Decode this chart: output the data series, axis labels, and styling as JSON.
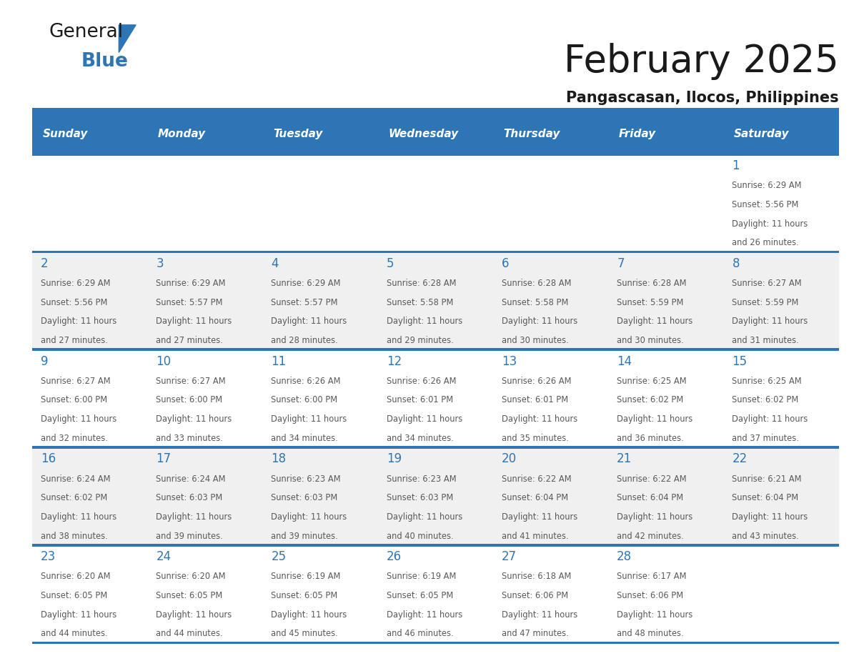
{
  "title": "February 2025",
  "subtitle": "Pangascasan, Ilocos, Philippines",
  "header_bg_color": "#2E75B6",
  "header_text_color": "#FFFFFF",
  "cell_bg_white": "#FFFFFF",
  "cell_bg_gray": "#F2F2F2",
  "border_color": "#2E75B6",
  "day_number_color": "#2E75B6",
  "text_color": "#595959",
  "days_of_week": [
    "Sunday",
    "Monday",
    "Tuesday",
    "Wednesday",
    "Thursday",
    "Friday",
    "Saturday"
  ],
  "calendar_data": [
    [
      null,
      null,
      null,
      null,
      null,
      null,
      {
        "day": "1",
        "sunrise": "6:29 AM",
        "sunset": "5:56 PM",
        "daylight": "11 hours",
        "daylight2": "and 26 minutes."
      }
    ],
    [
      {
        "day": "2",
        "sunrise": "6:29 AM",
        "sunset": "5:56 PM",
        "daylight": "11 hours",
        "daylight2": "and 27 minutes."
      },
      {
        "day": "3",
        "sunrise": "6:29 AM",
        "sunset": "5:57 PM",
        "daylight": "11 hours",
        "daylight2": "and 27 minutes."
      },
      {
        "day": "4",
        "sunrise": "6:29 AM",
        "sunset": "5:57 PM",
        "daylight": "11 hours",
        "daylight2": "and 28 minutes."
      },
      {
        "day": "5",
        "sunrise": "6:28 AM",
        "sunset": "5:58 PM",
        "daylight": "11 hours",
        "daylight2": "and 29 minutes."
      },
      {
        "day": "6",
        "sunrise": "6:28 AM",
        "sunset": "5:58 PM",
        "daylight": "11 hours",
        "daylight2": "and 30 minutes."
      },
      {
        "day": "7",
        "sunrise": "6:28 AM",
        "sunset": "5:59 PM",
        "daylight": "11 hours",
        "daylight2": "and 30 minutes."
      },
      {
        "day": "8",
        "sunrise": "6:27 AM",
        "sunset": "5:59 PM",
        "daylight": "11 hours",
        "daylight2": "and 31 minutes."
      }
    ],
    [
      {
        "day": "9",
        "sunrise": "6:27 AM",
        "sunset": "6:00 PM",
        "daylight": "11 hours",
        "daylight2": "and 32 minutes."
      },
      {
        "day": "10",
        "sunrise": "6:27 AM",
        "sunset": "6:00 PM",
        "daylight": "11 hours",
        "daylight2": "and 33 minutes."
      },
      {
        "day": "11",
        "sunrise": "6:26 AM",
        "sunset": "6:00 PM",
        "daylight": "11 hours",
        "daylight2": "and 34 minutes."
      },
      {
        "day": "12",
        "sunrise": "6:26 AM",
        "sunset": "6:01 PM",
        "daylight": "11 hours",
        "daylight2": "and 34 minutes."
      },
      {
        "day": "13",
        "sunrise": "6:26 AM",
        "sunset": "6:01 PM",
        "daylight": "11 hours",
        "daylight2": "and 35 minutes."
      },
      {
        "day": "14",
        "sunrise": "6:25 AM",
        "sunset": "6:02 PM",
        "daylight": "11 hours",
        "daylight2": "and 36 minutes."
      },
      {
        "day": "15",
        "sunrise": "6:25 AM",
        "sunset": "6:02 PM",
        "daylight": "11 hours",
        "daylight2": "and 37 minutes."
      }
    ],
    [
      {
        "day": "16",
        "sunrise": "6:24 AM",
        "sunset": "6:02 PM",
        "daylight": "11 hours",
        "daylight2": "and 38 minutes."
      },
      {
        "day": "17",
        "sunrise": "6:24 AM",
        "sunset": "6:03 PM",
        "daylight": "11 hours",
        "daylight2": "and 39 minutes."
      },
      {
        "day": "18",
        "sunrise": "6:23 AM",
        "sunset": "6:03 PM",
        "daylight": "11 hours",
        "daylight2": "and 39 minutes."
      },
      {
        "day": "19",
        "sunrise": "6:23 AM",
        "sunset": "6:03 PM",
        "daylight": "11 hours",
        "daylight2": "and 40 minutes."
      },
      {
        "day": "20",
        "sunrise": "6:22 AM",
        "sunset": "6:04 PM",
        "daylight": "11 hours",
        "daylight2": "and 41 minutes."
      },
      {
        "day": "21",
        "sunrise": "6:22 AM",
        "sunset": "6:04 PM",
        "daylight": "11 hours",
        "daylight2": "and 42 minutes."
      },
      {
        "day": "22",
        "sunrise": "6:21 AM",
        "sunset": "6:04 PM",
        "daylight": "11 hours",
        "daylight2": "and 43 minutes."
      }
    ],
    [
      {
        "day": "23",
        "sunrise": "6:20 AM",
        "sunset": "6:05 PM",
        "daylight": "11 hours",
        "daylight2": "and 44 minutes."
      },
      {
        "day": "24",
        "sunrise": "6:20 AM",
        "sunset": "6:05 PM",
        "daylight": "11 hours",
        "daylight2": "and 44 minutes."
      },
      {
        "day": "25",
        "sunrise": "6:19 AM",
        "sunset": "6:05 PM",
        "daylight": "11 hours",
        "daylight2": "and 45 minutes."
      },
      {
        "day": "26",
        "sunrise": "6:19 AM",
        "sunset": "6:05 PM",
        "daylight": "11 hours",
        "daylight2": "and 46 minutes."
      },
      {
        "day": "27",
        "sunrise": "6:18 AM",
        "sunset": "6:06 PM",
        "daylight": "11 hours",
        "daylight2": "and 47 minutes."
      },
      {
        "day": "28",
        "sunrise": "6:17 AM",
        "sunset": "6:06 PM",
        "daylight": "11 hours",
        "daylight2": "and 48 minutes."
      },
      null
    ]
  ]
}
